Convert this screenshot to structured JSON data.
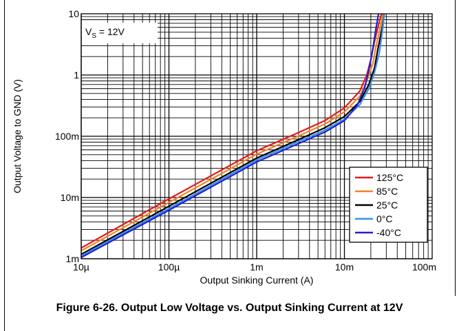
{
  "chart_data": {
    "type": "line",
    "xlabel": "Output Sinking Current (A)",
    "ylabel": "Output Voltage to GND (V)",
    "xscale": "log",
    "yscale": "log",
    "xlim": [
      1e-05,
      0.1
    ],
    "ylim": [
      0.001,
      10
    ],
    "x_ticks": [
      {
        "value": 1e-05,
        "label": "10µ"
      },
      {
        "value": 0.0001,
        "label": "100µ"
      },
      {
        "value": 0.001,
        "label": "1m"
      },
      {
        "value": 0.01,
        "label": "10m"
      },
      {
        "value": 0.1,
        "label": "100m"
      }
    ],
    "y_ticks": [
      {
        "value": 0.001,
        "label": "1m"
      },
      {
        "value": 0.01,
        "label": "10m"
      },
      {
        "value": 0.1,
        "label": "100m"
      },
      {
        "value": 1,
        "label": "1"
      },
      {
        "value": 10,
        "label": "10"
      }
    ],
    "grid": true,
    "legend_position": "bottom-right",
    "annotation": {
      "main": "V",
      "sub": "S",
      "rest": " = 12V"
    },
    "series": [
      {
        "name": "125°C",
        "color": "#e31a1c",
        "x": [
          1e-05,
          0.0001,
          0.001,
          0.003,
          0.006,
          0.01,
          0.015,
          0.018,
          0.02,
          0.022,
          0.025,
          0.0265
        ],
        "y": [
          0.0015,
          0.0095,
          0.058,
          0.115,
          0.18,
          0.29,
          0.55,
          1.0,
          1.8,
          3.5,
          7.5,
          10
        ]
      },
      {
        "name": "85°C",
        "color": "#f58220",
        "x": [
          1e-05,
          0.0001,
          0.001,
          0.003,
          0.006,
          0.01,
          0.015,
          0.018,
          0.021,
          0.023,
          0.026,
          0.0275
        ],
        "y": [
          0.00135,
          0.0083,
          0.051,
          0.101,
          0.158,
          0.25,
          0.45,
          0.8,
          1.5,
          3.0,
          6.5,
          10
        ]
      },
      {
        "name": "25°C",
        "color": "#000000",
        "x": [
          1e-05,
          0.0001,
          0.001,
          0.003,
          0.006,
          0.01,
          0.015,
          0.019,
          0.022,
          0.024,
          0.027,
          0.0285
        ],
        "y": [
          0.00118,
          0.0072,
          0.044,
          0.088,
          0.138,
          0.21,
          0.37,
          0.7,
          1.3,
          2.6,
          6.0,
          10
        ]
      },
      {
        "name": "0°C",
        "color": "#3a8ee6",
        "x": [
          1e-05,
          0.0001,
          0.001,
          0.003,
          0.006,
          0.01,
          0.015,
          0.019,
          0.022,
          0.025,
          0.027,
          0.0285
        ],
        "y": [
          0.00112,
          0.0066,
          0.041,
          0.082,
          0.126,
          0.19,
          0.33,
          0.6,
          1.1,
          2.3,
          5.0,
          10
        ]
      },
      {
        "name": "-40°C",
        "color": "#1f1fd6",
        "x": [
          1e-05,
          0.0001,
          0.001,
          0.003,
          0.006,
          0.01,
          0.014,
          0.017,
          0.019,
          0.021,
          0.023,
          0.0245
        ],
        "y": [
          0.00105,
          0.0062,
          0.038,
          0.076,
          0.117,
          0.18,
          0.32,
          0.62,
          1.2,
          2.6,
          6.0,
          10
        ]
      }
    ]
  },
  "caption": "Figure 6-26. Output Low Voltage vs. Output Sinking Current at 12V"
}
